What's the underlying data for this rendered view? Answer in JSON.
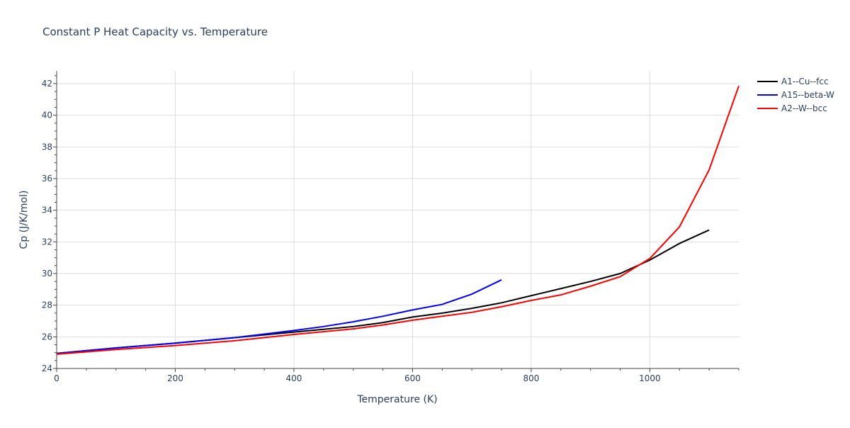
{
  "chart_data": {
    "type": "line",
    "title": "Constant P Heat Capacity vs. Temperature",
    "xlabel": "Temperature (K)",
    "ylabel": "Cp (J/K/mol)",
    "xlim": [
      0,
      1150
    ],
    "ylim": [
      24,
      42.8
    ],
    "xticks": [
      0,
      200,
      400,
      600,
      800,
      1000
    ],
    "yticks": [
      24,
      26,
      28,
      30,
      32,
      34,
      36,
      38,
      40,
      42
    ],
    "grid": true,
    "legend": "top-right",
    "series": [
      {
        "name": "A1--Cu--fcc",
        "color": "#000000",
        "x": [
          0,
          100,
          200,
          300,
          400,
          500,
          550,
          600,
          650,
          700,
          750,
          800,
          850,
          900,
          950,
          1000,
          1050,
          1100
        ],
        "y": [
          24.95,
          25.3,
          25.6,
          25.95,
          26.3,
          26.65,
          26.9,
          27.25,
          27.5,
          27.8,
          28.15,
          28.6,
          29.05,
          29.5,
          30.0,
          30.85,
          31.9,
          32.75
        ]
      },
      {
        "name": "A15--beta-W",
        "color": "#0000ff",
        "x": [
          0,
          100,
          200,
          300,
          400,
          450,
          500,
          550,
          600,
          650,
          700,
          750
        ],
        "y": [
          24.95,
          25.3,
          25.6,
          25.95,
          26.4,
          26.65,
          26.95,
          27.3,
          27.7,
          28.05,
          28.7,
          29.6
        ]
      },
      {
        "name": "A2--W--bcc",
        "color": "#ff0000",
        "x": [
          0,
          100,
          200,
          300,
          400,
          500,
          550,
          600,
          650,
          700,
          750,
          800,
          850,
          900,
          950,
          1000,
          1050,
          1100,
          1150
        ],
        "y": [
          24.9,
          25.2,
          25.45,
          25.75,
          26.15,
          26.5,
          26.75,
          27.05,
          27.3,
          27.55,
          27.9,
          28.3,
          28.65,
          29.2,
          29.8,
          30.95,
          32.95,
          36.55,
          41.85
        ]
      }
    ]
  }
}
